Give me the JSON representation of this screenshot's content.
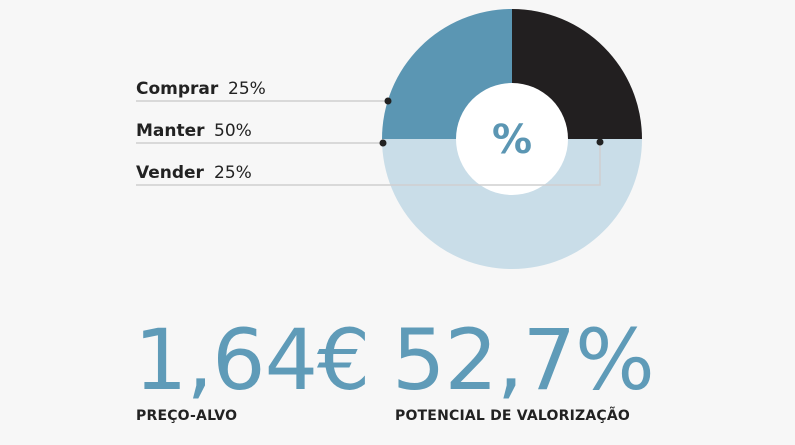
{
  "chart_data": {
    "type": "pie",
    "center_label": "%",
    "slices": [
      {
        "name": "Comprar",
        "label": "25%",
        "value": 25,
        "color": "#5b96b3"
      },
      {
        "name": "Manter",
        "label": "50%",
        "value": 50,
        "color": "#c9dde8"
      },
      {
        "name": "Vender",
        "label": "25%",
        "value": 25,
        "color": "#221f20"
      }
    ]
  },
  "stats": {
    "price_target": {
      "value": "1,64€",
      "label": "PREÇO-ALVO"
    },
    "upside": {
      "value": "52,7%",
      "label": "POTENCIAL DE VALORIZAÇÃO"
    }
  }
}
